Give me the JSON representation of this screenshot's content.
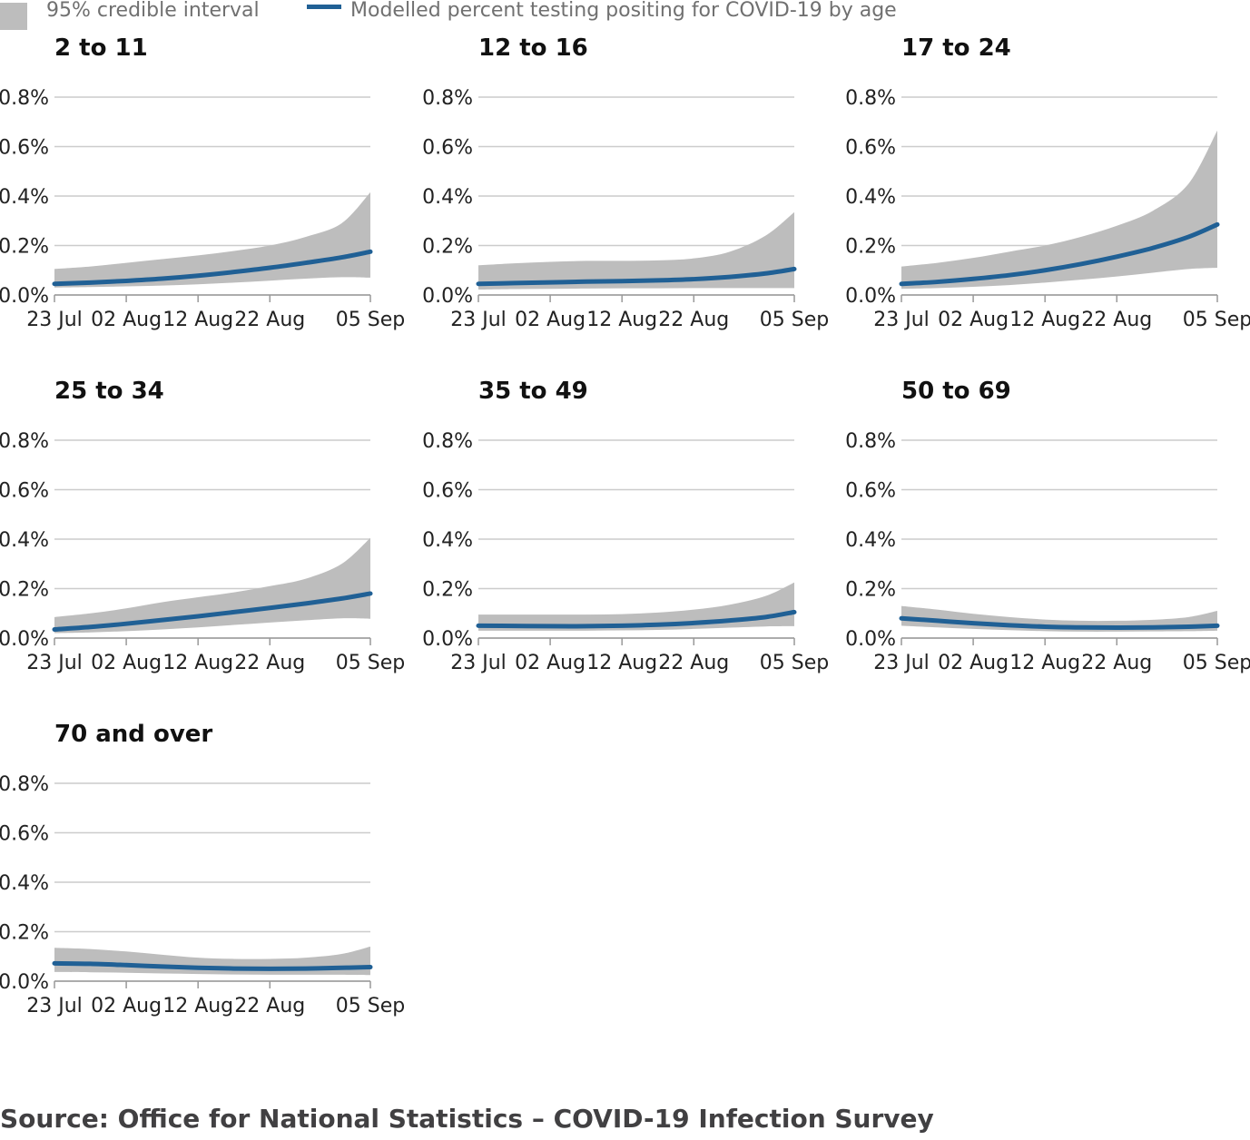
{
  "legend": {
    "band_label": "95% credible interval",
    "line_label": "Modelled percent testing positing for COVID-19 by age"
  },
  "source": "Source: Office for National Statistics – COVID-19 Infection Survey",
  "colors": {
    "line": "#206095",
    "band": "#bdbdbd",
    "grid": "#cccccc",
    "text": "#222222"
  },
  "chart_data": {
    "type": "area",
    "ylim": [
      0,
      0.8
    ],
    "y_ticks": [
      "0.0%",
      "0.2%",
      "0.4%",
      "0.6%",
      "0.8%"
    ],
    "x_ticks": [
      "23 Jul",
      "02 Aug",
      "12 Aug",
      "22 Aug",
      "05 Sep"
    ],
    "x": [
      "23 Jul",
      "28 Jul",
      "02 Aug",
      "07 Aug",
      "12 Aug",
      "17 Aug",
      "22 Aug",
      "27 Aug",
      "01 Sep",
      "05 Sep"
    ],
    "panels": [
      {
        "title": "2 to 11",
        "series": [
          {
            "name": "Modelled percent testing positing for COVID-19 by age",
            "values": [
              0.045,
              0.05,
              0.057,
              0.066,
              0.078,
              0.093,
              0.11,
              0.13,
              0.152,
              0.175
            ]
          },
          {
            "name": "95% credible interval",
            "lower": [
              0.03,
              0.032,
              0.035,
              0.038,
              0.043,
              0.05,
              0.058,
              0.066,
              0.072,
              0.07
            ],
            "upper": [
              0.105,
              0.115,
              0.13,
              0.145,
              0.16,
              0.178,
              0.2,
              0.235,
              0.29,
              0.415
            ]
          }
        ]
      },
      {
        "title": "12 to 16",
        "series": [
          {
            "name": "Modelled percent testing positing for COVID-19 by age",
            "values": [
              0.045,
              0.048,
              0.051,
              0.054,
              0.056,
              0.059,
              0.064,
              0.073,
              0.087,
              0.105
            ]
          },
          {
            "name": "95% credible interval",
            "lower": [
              0.022,
              0.024,
              0.025,
              0.026,
              0.027,
              0.027,
              0.028,
              0.028,
              0.028,
              0.028
            ],
            "upper": [
              0.12,
              0.128,
              0.134,
              0.138,
              0.138,
              0.14,
              0.148,
              0.175,
              0.24,
              0.335
            ]
          }
        ]
      },
      {
        "title": "17 to 24",
        "series": [
          {
            "name": "Modelled percent testing positing for COVID-19 by age",
            "values": [
              0.045,
              0.053,
              0.065,
              0.08,
              0.1,
              0.125,
              0.155,
              0.19,
              0.235,
              0.285
            ]
          },
          {
            "name": "95% credible interval",
            "lower": [
              0.025,
              0.028,
              0.033,
              0.04,
              0.05,
              0.062,
              0.075,
              0.09,
              0.105,
              0.11
            ],
            "upper": [
              0.115,
              0.13,
              0.15,
              0.175,
              0.2,
              0.235,
              0.28,
              0.34,
              0.45,
              0.665
            ]
          }
        ]
      },
      {
        "title": "25 to 34",
        "series": [
          {
            "name": "Modelled percent testing positing for COVID-19 by age",
            "values": [
              0.035,
              0.045,
              0.058,
              0.073,
              0.088,
              0.105,
              0.122,
              0.14,
              0.16,
              0.18
            ]
          },
          {
            "name": "95% credible interval",
            "lower": [
              0.02,
              0.023,
              0.028,
              0.035,
              0.043,
              0.053,
              0.063,
              0.072,
              0.08,
              0.078
            ],
            "upper": [
              0.085,
              0.1,
              0.12,
              0.145,
              0.165,
              0.185,
              0.21,
              0.24,
              0.3,
              0.405
            ]
          }
        ]
      },
      {
        "title": "35 to 49",
        "series": [
          {
            "name": "Modelled percent testing positing for COVID-19 by age",
            "values": [
              0.05,
              0.049,
              0.048,
              0.048,
              0.05,
              0.054,
              0.061,
              0.071,
              0.085,
              0.105
            ]
          },
          {
            "name": "95% credible interval",
            "lower": [
              0.03,
              0.03,
              0.03,
              0.03,
              0.031,
              0.033,
              0.037,
              0.042,
              0.047,
              0.048
            ],
            "upper": [
              0.095,
              0.095,
              0.095,
              0.095,
              0.097,
              0.103,
              0.115,
              0.135,
              0.17,
              0.225
            ]
          }
        ]
      },
      {
        "title": "50 to 69",
        "series": [
          {
            "name": "Modelled percent testing positing for COVID-19 by age",
            "values": [
              0.08,
              0.07,
              0.06,
              0.052,
              0.046,
              0.043,
              0.042,
              0.043,
              0.046,
              0.05
            ]
          },
          {
            "name": "95% credible interval",
            "lower": [
              0.05,
              0.043,
              0.037,
              0.032,
              0.028,
              0.026,
              0.026,
              0.027,
              0.028,
              0.03
            ],
            "upper": [
              0.13,
              0.115,
              0.098,
              0.085,
              0.075,
              0.07,
              0.07,
              0.074,
              0.085,
              0.11
            ]
          }
        ]
      },
      {
        "title": "70 and over",
        "series": [
          {
            "name": "Modelled percent testing positing for COVID-19 by age",
            "values": [
              0.072,
              0.07,
              0.065,
              0.059,
              0.054,
              0.051,
              0.05,
              0.051,
              0.054,
              0.057
            ]
          },
          {
            "name": "95% credible interval",
            "lower": [
              0.037,
              0.036,
              0.034,
              0.031,
              0.029,
              0.027,
              0.026,
              0.026,
              0.026,
              0.025
            ],
            "upper": [
              0.135,
              0.13,
              0.12,
              0.107,
              0.095,
              0.09,
              0.09,
              0.095,
              0.11,
              0.14
            ]
          }
        ]
      }
    ]
  }
}
